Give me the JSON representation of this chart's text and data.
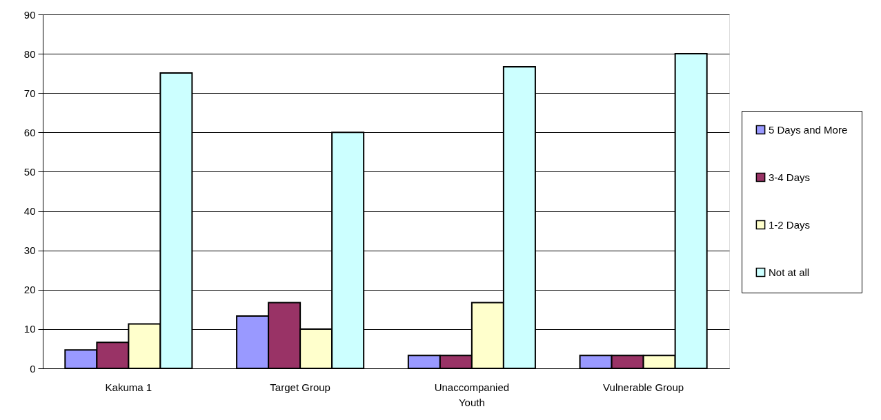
{
  "chart_data": {
    "type": "bar",
    "categories": [
      "Kakuma 1",
      "Target Group",
      "Unaccompanied Youth",
      "Vulnerable Group"
    ],
    "series": [
      {
        "name": "5 Days and More",
        "color": "#9999ff",
        "values": [
          4.7,
          13.3,
          3.3,
          3.3
        ]
      },
      {
        "name": "3-4 Days",
        "color": "#993366",
        "values": [
          6.6,
          16.7,
          3.3,
          3.3
        ]
      },
      {
        "name": "1-2 Days",
        "color": "#ffffcc",
        "values": [
          11.3,
          10,
          16.7,
          3.3
        ]
      },
      {
        "name": "Not at all",
        "color": "#ccffff",
        "values": [
          75.1,
          60,
          76.7,
          80
        ]
      }
    ],
    "ylim": [
      0,
      90
    ],
    "yticks": [
      0,
      10,
      20,
      30,
      40,
      50,
      60,
      70,
      80,
      90
    ],
    "grid": "y",
    "legend": "right"
  }
}
